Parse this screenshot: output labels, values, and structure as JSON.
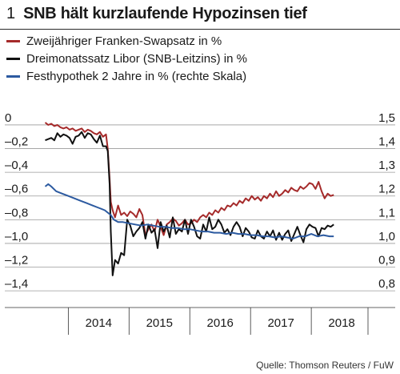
{
  "header": {
    "figure_number": "1",
    "title": "SNB hält kurzlaufende Hypozinsen tief"
  },
  "source": "Quelle: Thomson Reuters / FuW",
  "chart_data": {
    "type": "line",
    "title": "SNB hält kurzlaufende Hypozinsen tief",
    "x_unit": "year",
    "x_ticks": [
      "2014",
      "2015",
      "2016",
      "2017",
      "2018"
    ],
    "xlim": [
      2013.6,
      2018.67
    ],
    "y_left": {
      "ticks": [
        "0",
        "–0,2",
        "–0,4",
        "–0,6",
        "–0,8",
        "–1,0",
        "–1,2",
        "–1,4"
      ],
      "tick_values": [
        0,
        -0.2,
        -0.4,
        -0.6,
        -0.8,
        -1.0,
        -1.2,
        -1.4
      ],
      "ylim": [
        -1.46,
        0.02
      ]
    },
    "y_right": {
      "ticks": [
        "1,5",
        "1,4",
        "1,3",
        "1,2",
        "1,1",
        "1,0",
        "0,9",
        "0,8"
      ],
      "tick_values": [
        1.5,
        1.4,
        1.3,
        1.2,
        1.1,
        1.0,
        0.9,
        0.8
      ],
      "ylim": [
        0.77,
        1.51
      ]
    },
    "grid": "horizontal",
    "legend_position": "top-left",
    "colors": {
      "swap": "#a52a2a",
      "libor": "#111111",
      "mortgage": "#2c5aa0"
    },
    "series": [
      {
        "name": "Zweijähriger Franken-Swapsatz in %",
        "axis": "left",
        "color": "#a52a2a",
        "x": [
          2013.62,
          2013.67,
          2013.72,
          2013.77,
          2013.82,
          2013.87,
          2013.92,
          2013.97,
          2014.02,
          2014.07,
          2014.12,
          2014.17,
          2014.22,
          2014.27,
          2014.32,
          2014.37,
          2014.42,
          2014.47,
          2014.52,
          2014.57,
          2014.62,
          2014.65,
          2014.68,
          2014.7,
          2014.73,
          2014.77,
          2014.82,
          2014.87,
          2014.92,
          2014.97,
          2015.02,
          2015.07,
          2015.12,
          2015.17,
          2015.22,
          2015.27,
          2015.32,
          2015.37,
          2015.42,
          2015.47,
          2015.52,
          2015.57,
          2015.62,
          2015.67,
          2015.72,
          2015.77,
          2015.82,
          2015.87,
          2015.92,
          2015.97,
          2016.02,
          2016.07,
          2016.12,
          2016.17,
          2016.22,
          2016.27,
          2016.32,
          2016.37,
          2016.42,
          2016.47,
          2016.52,
          2016.57,
          2016.62,
          2016.67,
          2016.72,
          2016.77,
          2016.82,
          2016.87,
          2016.92,
          2016.97,
          2017.02,
          2017.07,
          2017.12,
          2017.17,
          2017.22,
          2017.27,
          2017.32,
          2017.37,
          2017.42,
          2017.47,
          2017.52,
          2017.57,
          2017.62,
          2017.67,
          2017.72,
          2017.77,
          2017.82,
          2017.87,
          2017.92,
          2017.97,
          2018.02,
          2018.07,
          2018.12,
          2018.17,
          2018.22,
          2018.27,
          2018.32,
          2018.37
        ],
        "y": [
          0.02,
          0.0,
          0.01,
          -0.01,
          0.0,
          -0.02,
          -0.03,
          -0.02,
          -0.04,
          -0.03,
          -0.05,
          -0.04,
          -0.03,
          -0.06,
          -0.04,
          -0.05,
          -0.07,
          -0.08,
          -0.06,
          -0.1,
          -0.08,
          -0.2,
          -0.45,
          -0.65,
          -0.72,
          -0.78,
          -0.68,
          -0.76,
          -0.74,
          -0.77,
          -0.73,
          -0.75,
          -0.78,
          -0.71,
          -0.76,
          -0.93,
          -0.88,
          -0.84,
          -0.9,
          -0.8,
          -0.86,
          -0.93,
          -0.84,
          -0.82,
          -0.79,
          -0.81,
          -0.85,
          -0.83,
          -0.8,
          -0.84,
          -0.83,
          -0.8,
          -0.82,
          -0.78,
          -0.76,
          -0.78,
          -0.74,
          -0.76,
          -0.72,
          -0.74,
          -0.7,
          -0.72,
          -0.68,
          -0.69,
          -0.66,
          -0.68,
          -0.64,
          -0.66,
          -0.62,
          -0.64,
          -0.6,
          -0.63,
          -0.61,
          -0.64,
          -0.6,
          -0.62,
          -0.58,
          -0.61,
          -0.56,
          -0.6,
          -0.58,
          -0.55,
          -0.57,
          -0.53,
          -0.55,
          -0.56,
          -0.52,
          -0.54,
          -0.52,
          -0.49,
          -0.5,
          -0.54,
          -0.48,
          -0.56,
          -0.62,
          -0.58,
          -0.6,
          -0.59
        ]
      },
      {
        "name": "Dreimonatssatz Libor (SNB-Leitzins) in %",
        "axis": "left",
        "color": "#111111",
        "x": [
          2013.62,
          2013.67,
          2013.72,
          2013.77,
          2013.82,
          2013.87,
          2013.92,
          2013.97,
          2014.02,
          2014.07,
          2014.12,
          2014.17,
          2014.22,
          2014.27,
          2014.32,
          2014.37,
          2014.42,
          2014.47,
          2014.52,
          2014.57,
          2014.62,
          2014.65,
          2014.68,
          2014.7,
          2014.73,
          2014.77,
          2014.82,
          2014.87,
          2014.92,
          2014.97,
          2015.02,
          2015.07,
          2015.12,
          2015.17,
          2015.22,
          2015.27,
          2015.32,
          2015.37,
          2015.42,
          2015.47,
          2015.52,
          2015.57,
          2015.62,
          2015.67,
          2015.72,
          2015.77,
          2015.82,
          2015.87,
          2015.92,
          2015.97,
          2016.02,
          2016.07,
          2016.12,
          2016.17,
          2016.22,
          2016.27,
          2016.32,
          2016.37,
          2016.42,
          2016.47,
          2016.52,
          2016.57,
          2016.62,
          2016.67,
          2016.72,
          2016.77,
          2016.82,
          2016.87,
          2016.92,
          2016.97,
          2017.02,
          2017.07,
          2017.12,
          2017.17,
          2017.22,
          2017.27,
          2017.32,
          2017.37,
          2017.42,
          2017.47,
          2017.52,
          2017.57,
          2017.62,
          2017.67,
          2017.72,
          2017.77,
          2017.82,
          2017.87,
          2017.92,
          2017.97,
          2018.02,
          2018.07,
          2018.12,
          2018.17,
          2018.22,
          2018.27,
          2018.32,
          2018.37
        ],
        "y": [
          -0.13,
          -0.12,
          -0.11,
          -0.13,
          -0.07,
          -0.1,
          -0.08,
          -0.09,
          -0.11,
          -0.16,
          -0.1,
          -0.09,
          -0.06,
          -0.11,
          -0.07,
          -0.08,
          -0.12,
          -0.15,
          -0.09,
          -0.18,
          -0.18,
          -0.22,
          -0.5,
          -0.9,
          -1.27,
          -1.14,
          -1.17,
          -1.08,
          -1.1,
          -0.8,
          -0.85,
          -0.94,
          -0.9,
          -0.87,
          -0.82,
          -0.96,
          -0.84,
          -0.91,
          -0.88,
          -1.04,
          -0.82,
          -0.9,
          -0.85,
          -0.95,
          -0.78,
          -0.92,
          -0.88,
          -0.9,
          -0.8,
          -0.92,
          -0.8,
          -0.86,
          -0.94,
          -0.96,
          -0.84,
          -0.9,
          -0.78,
          -0.88,
          -0.86,
          -0.8,
          -0.84,
          -0.91,
          -0.88,
          -0.93,
          -0.86,
          -0.82,
          -0.86,
          -0.94,
          -0.87,
          -0.9,
          -0.95,
          -0.96,
          -0.89,
          -0.94,
          -0.96,
          -0.9,
          -0.94,
          -0.89,
          -0.97,
          -0.91,
          -0.97,
          -0.92,
          -0.89,
          -0.98,
          -0.92,
          -0.86,
          -0.93,
          -0.99,
          -0.88,
          -0.84,
          -0.86,
          -0.87,
          -0.94,
          -0.87,
          -0.88,
          -0.85,
          -0.86,
          -0.84
        ]
      },
      {
        "name": "Festhypothek 2 Jahre in % (rechte Skala)",
        "axis": "right",
        "color": "#2c5aa0",
        "x": [
          2013.62,
          2013.67,
          2013.72,
          2013.8,
          2013.9,
          2014.0,
          2014.1,
          2014.2,
          2014.3,
          2014.4,
          2014.5,
          2014.6,
          2014.65,
          2014.7,
          2014.75,
          2014.82,
          2014.9,
          2015.0,
          2015.1,
          2015.2,
          2015.3,
          2015.4,
          2015.5,
          2015.6,
          2015.7,
          2015.8,
          2015.9,
          2016.0,
          2016.1,
          2016.2,
          2016.3,
          2016.4,
          2016.5,
          2016.6,
          2016.7,
          2016.8,
          2016.9,
          2017.0,
          2017.1,
          2017.2,
          2017.3,
          2017.4,
          2017.5,
          2017.6,
          2017.7,
          2017.8,
          2017.9,
          2018.0,
          2018.1,
          2018.2,
          2018.3,
          2018.37
        ],
        "y": [
          1.24,
          1.25,
          1.24,
          1.22,
          1.21,
          1.2,
          1.19,
          1.18,
          1.17,
          1.16,
          1.15,
          1.14,
          1.13,
          1.12,
          1.1,
          1.09,
          1.09,
          1.085,
          1.08,
          1.075,
          1.08,
          1.075,
          1.07,
          1.07,
          1.065,
          1.065,
          1.06,
          1.06,
          1.055,
          1.05,
          1.05,
          1.045,
          1.045,
          1.04,
          1.045,
          1.04,
          1.04,
          1.035,
          1.035,
          1.03,
          1.03,
          1.025,
          1.03,
          1.025,
          1.02,
          1.03,
          1.03,
          1.04,
          1.03,
          1.035,
          1.03,
          1.03
        ]
      }
    ]
  }
}
